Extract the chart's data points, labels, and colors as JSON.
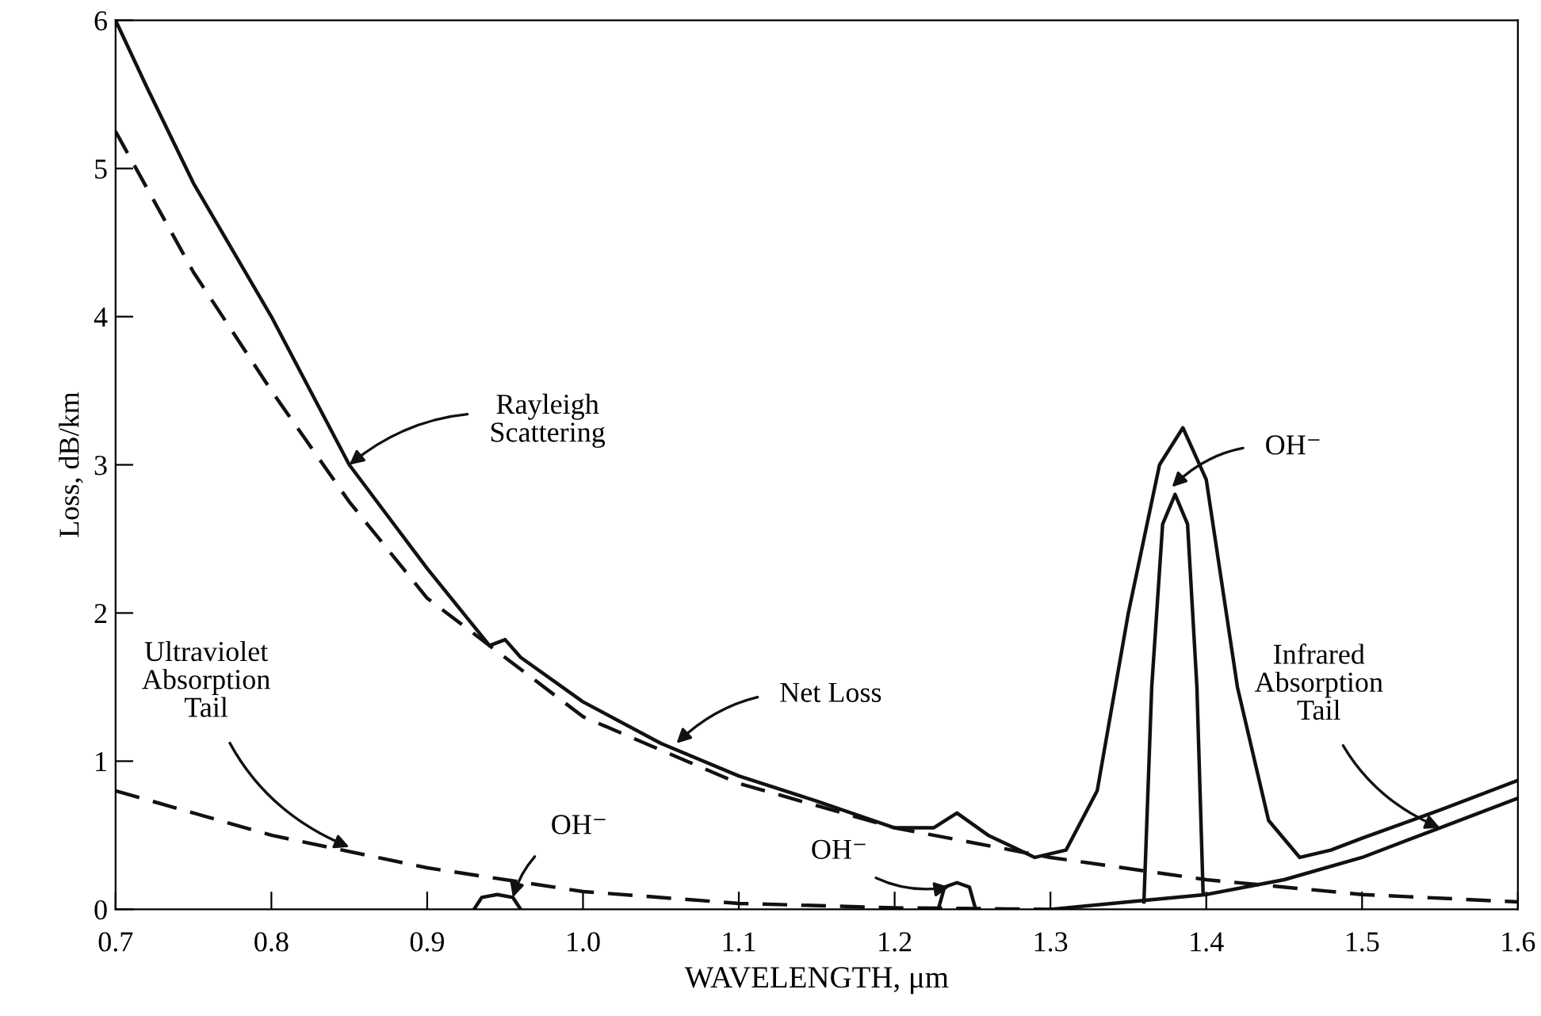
{
  "chart_data": {
    "type": "line",
    "xlabel": "WAVELENGTH, μm",
    "ylabel": "Loss, dB/km",
    "xlim": [
      0.7,
      1.6
    ],
    "ylim": [
      0,
      6
    ],
    "xticks": [
      0.7,
      0.8,
      0.9,
      {
        "value": 1.0,
        "label": "1.0"
      },
      1.1,
      1.2,
      1.3,
      1.4,
      1.5,
      1.6
    ],
    "yticks": [
      0,
      1,
      2,
      3,
      4,
      5,
      6
    ],
    "grid": false,
    "legend": false,
    "marker": "none",
    "series": [
      {
        "color": "#111111",
        "line_style": "solid",
        "x": [
          0.7,
          0.72,
          0.75,
          0.8,
          0.85,
          0.9,
          0.94,
          0.95,
          0.96,
          1.0,
          1.05,
          1.1,
          1.15,
          1.2,
          1.225,
          1.24,
          1.26,
          1.29,
          1.31,
          1.33,
          1.35,
          1.37,
          1.385,
          1.4,
          1.42,
          1.44,
          1.46,
          1.48,
          1.5,
          1.55,
          1.6
        ],
        "values": [
          6.0,
          5.55,
          4.9,
          4.0,
          3.0,
          2.3,
          1.78,
          1.82,
          1.7,
          1.4,
          1.12,
          0.9,
          0.73,
          0.55,
          0.55,
          0.65,
          0.5,
          0.35,
          0.4,
          0.8,
          2.0,
          3.0,
          3.25,
          2.9,
          1.5,
          0.6,
          0.35,
          0.4,
          0.48,
          0.67,
          0.87
        ]
      },
      {
        "color": "#111111",
        "line_style": "dashed",
        "x": [
          0.7,
          0.75,
          0.8,
          0.85,
          0.9,
          1.0,
          1.1,
          1.2,
          1.3,
          1.4,
          1.5,
          1.6
        ],
        "values": [
          5.25,
          4.3,
          3.5,
          2.75,
          2.1,
          1.3,
          0.85,
          0.55,
          0.35,
          0.2,
          0.1,
          0.05
        ]
      },
      {
        "color": "#111111",
        "line_style": "dashed",
        "x": [
          0.7,
          0.8,
          0.9,
          1.0,
          1.1,
          1.2,
          1.3
        ],
        "values": [
          0.8,
          0.5,
          0.28,
          0.12,
          0.04,
          0.01,
          0.0
        ]
      },
      {
        "color": "#111111",
        "line_style": "solid",
        "x": [
          0.93,
          0.935,
          0.945,
          0.955,
          0.96
        ],
        "values": [
          0.0,
          0.08,
          0.1,
          0.08,
          0.0
        ]
      },
      {
        "color": "#111111",
        "line_style": "solid",
        "x": [
          1.228,
          1.232,
          1.24,
          1.248,
          1.252
        ],
        "values": [
          0.0,
          0.15,
          0.18,
          0.15,
          0.0
        ]
      },
      {
        "color": "#111111",
        "line_style": "solid",
        "x": [
          1.36,
          1.365,
          1.372,
          1.38,
          1.388,
          1.394,
          1.398
        ],
        "values": [
          0.05,
          1.5,
          2.6,
          2.8,
          2.6,
          1.5,
          0.1
        ]
      },
      {
        "color": "#111111",
        "line_style": "solid",
        "x": [
          1.3,
          1.35,
          1.4,
          1.45,
          1.5,
          1.55,
          1.6
        ],
        "values": [
          0.0,
          0.05,
          0.1,
          0.2,
          0.35,
          0.55,
          0.75
        ]
      }
    ],
    "annotations": [
      {
        "text": "Rayleigh\nScattering",
        "x": 0.85,
        "y": 3.0
      },
      {
        "text": "Net Loss",
        "x": 1.06,
        "y": 1.12
      },
      {
        "text": "Ultraviolet\nAbsorption\nTail",
        "x": 0.85,
        "y": 0.42
      },
      {
        "text": "OH⁻",
        "x": 0.955,
        "y": 0.08
      },
      {
        "text": "OH⁻",
        "x": 1.235,
        "y": 0.15
      },
      {
        "text": "OH⁻",
        "x": 1.378,
        "y": 2.85
      },
      {
        "text": "Infrared\nAbsorption\nTail",
        "x": 1.55,
        "y": 0.55
      }
    ]
  }
}
